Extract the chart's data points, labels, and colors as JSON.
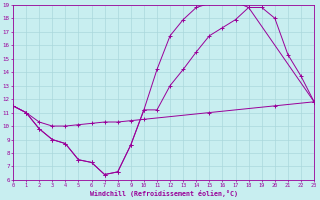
{
  "xlabel": "Windchill (Refroidissement éolien,°C)",
  "bg_color": "#c8eef0",
  "grid_color": "#aad8dc",
  "line_color": "#990099",
  "xlim": [
    0,
    23
  ],
  "ylim": [
    6,
    19
  ],
  "xticks": [
    0,
    1,
    2,
    3,
    4,
    5,
    6,
    7,
    8,
    9,
    10,
    11,
    12,
    13,
    14,
    15,
    16,
    17,
    18,
    19,
    20,
    21,
    22,
    23
  ],
  "yticks": [
    6,
    7,
    8,
    9,
    10,
    11,
    12,
    13,
    14,
    15,
    16,
    17,
    18,
    19
  ],
  "line1_x": [
    0,
    1,
    2,
    3,
    4,
    5,
    6,
    7,
    8,
    9,
    10,
    11,
    12,
    13,
    14,
    15,
    16,
    17,
    18,
    19,
    20,
    21,
    22,
    23
  ],
  "line1_y": [
    11.5,
    11.0,
    9.8,
    9.0,
    8.7,
    7.5,
    7.3,
    6.4,
    6.6,
    8.6,
    11.2,
    14.2,
    16.7,
    17.9,
    18.8,
    19.1,
    19.2,
    19.2,
    18.8,
    18.8,
    18.0,
    15.3,
    13.7,
    11.8
  ],
  "line2_x": [
    0,
    1,
    2,
    3,
    4,
    5,
    6,
    7,
    8,
    9,
    10,
    11,
    12,
    13,
    14,
    15,
    16,
    17,
    18,
    23
  ],
  "line2_y": [
    11.5,
    11.0,
    9.8,
    9.0,
    8.7,
    7.5,
    7.3,
    6.4,
    6.6,
    8.6,
    11.2,
    11.2,
    13.0,
    14.2,
    15.5,
    16.7,
    17.3,
    17.9,
    18.8,
    11.8
  ],
  "line3_x": [
    0,
    1,
    2,
    3,
    4,
    5,
    6,
    7,
    8,
    9,
    10,
    15,
    20,
    23
  ],
  "line3_y": [
    11.5,
    11.0,
    10.3,
    10.0,
    10.0,
    10.1,
    10.2,
    10.3,
    10.3,
    10.4,
    10.5,
    11.0,
    11.5,
    11.8
  ]
}
